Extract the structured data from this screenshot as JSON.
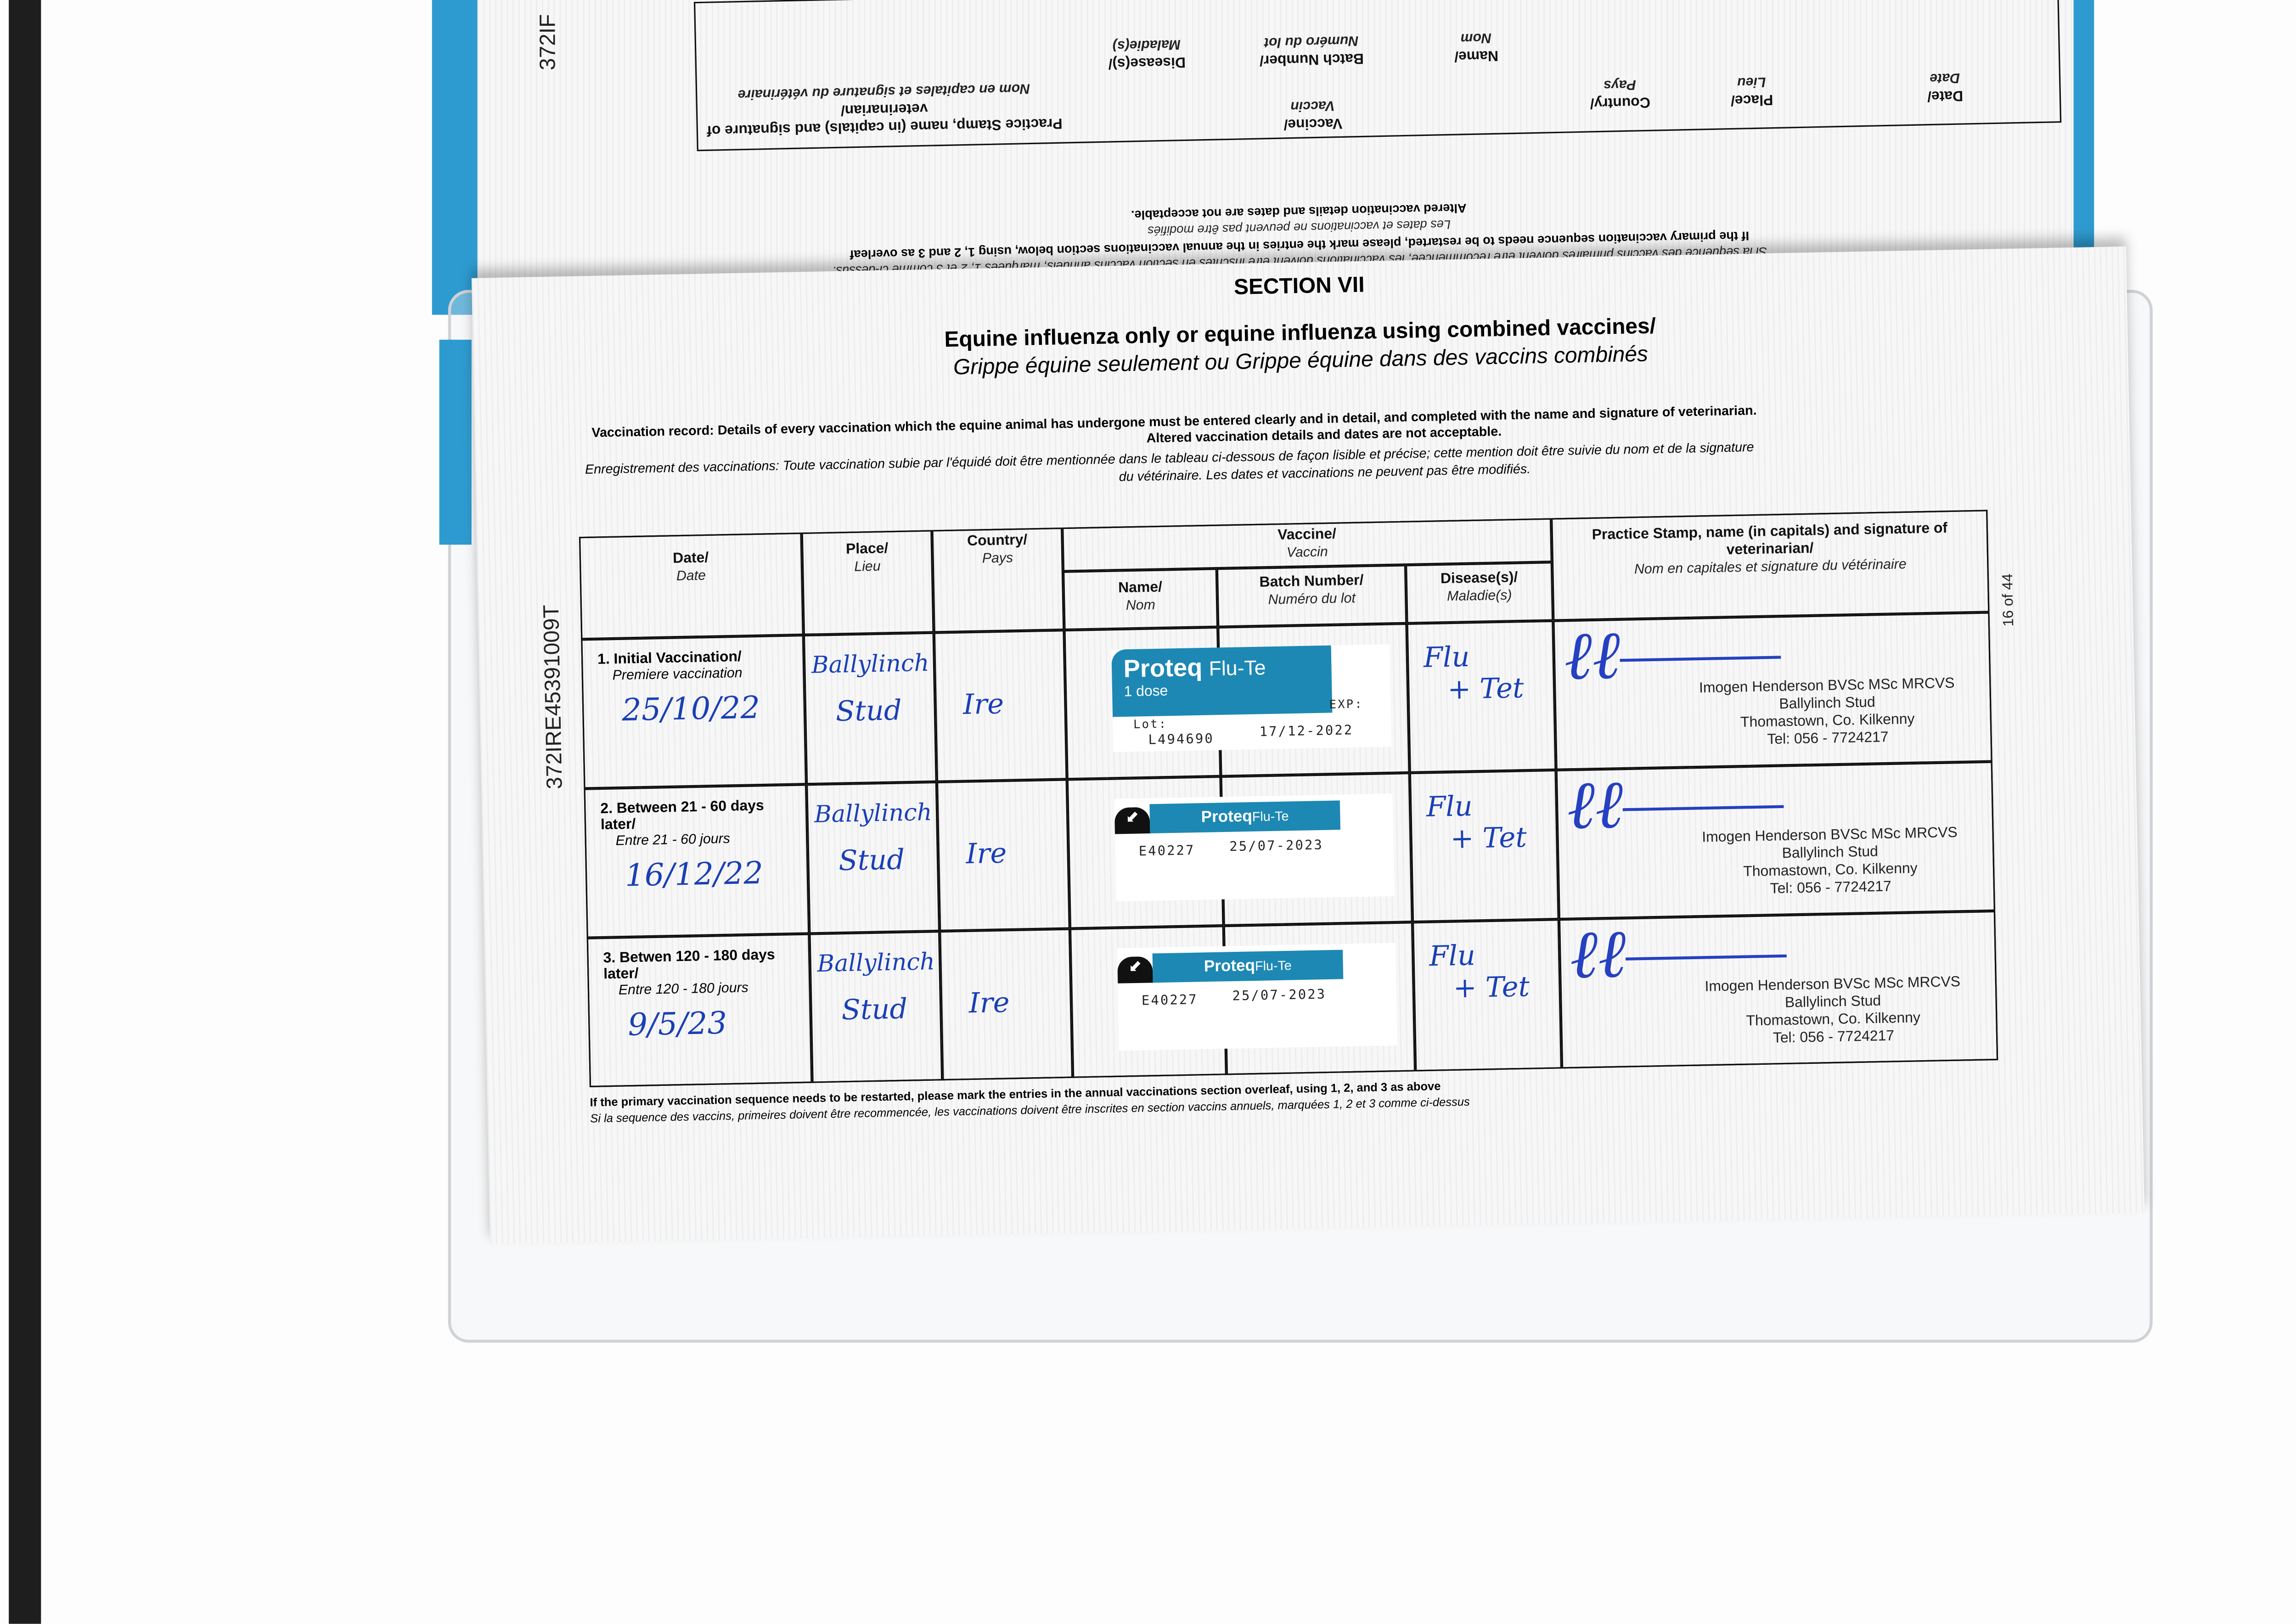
{
  "upper_page": {
    "id_fragment": "372IF",
    "headers": {
      "date": "Date/",
      "date_fr": "Date",
      "place": "Place/",
      "place_fr": "Lieu",
      "country": "Country/",
      "country_fr": "Pays",
      "vaccine": "Vaccine/",
      "vaccine_fr": "Vaccin",
      "name": "Name/",
      "name_fr": "Nom",
      "batch": "Batch Number/",
      "batch_fr": "Numéro du lot",
      "disease": "Disease(s)/",
      "disease_fr": "Maladie(s)",
      "practice": "Practice Stamp, name (in capitals) and signature of veterinarian/",
      "practice_fr": "Nom en capitales et signature du vétérinaire"
    },
    "notes": [
      "Si la sequence des vaccins primaires doivent être recommencée, les vaccinations doivent être inscrites en section vaccins annuels, marquées 1, 2 et 3 comme ci-dessus.",
      "If the primary vaccination sequence needs to be restarted, please mark the entries in the annual vaccinations section below, using 1, 2 and 3 as overleaf",
      "Les dates et vaccinations ne peuvent pas être modifiés",
      "Altered vaccination details and dates are not acceptable."
    ]
  },
  "page": {
    "section": "SECTION VII",
    "title": "Equine influenza only or equine influenza using combined vaccines/",
    "subtitle": "Grippe équine seulement ou Grippe équine dans des vaccins combinés",
    "instruction_en": "Vaccination record: Details of every vaccination which the equine animal has undergone must be entered clearly and in detail, and completed with the name and signature of veterinarian.",
    "instruction_en_2": "Altered vaccination details and dates are not acceptable.",
    "instruction_fr": "Enregistrement des vaccinations: Toute vaccination subie par l'équidé doit être mentionnée dans le tableau ci-dessous de façon lisible et précise; cette mention doit être suivie du nom et de la signature",
    "instruction_fr_2": "du vétérinaire. Les dates et vaccinations ne peuvent pas être modifiés.",
    "side_id": "372IRE45391009T",
    "page_number": "16 of 44",
    "table": {
      "headers": {
        "date": "Date/",
        "date_fr": "Date",
        "place": "Place/",
        "place_fr": "Lieu",
        "country": "Country/",
        "country_fr": "Pays",
        "vaccine": "Vaccine/",
        "vaccine_fr": "Vaccin",
        "name": "Name/",
        "name_fr": "Nom",
        "batch": "Batch Number/",
        "batch_fr": "Numéro du lot",
        "disease": "Disease(s)/",
        "disease_fr": "Maladie(s)",
        "practice": "Practice Stamp, name (in capitals) and signature of veterinarian/",
        "practice_fr": "Nom en capitales et signature du vétérinaire"
      },
      "rows": [
        {
          "label": "1. Initial Vaccination/",
          "label_fr": "Premiere vaccination",
          "date": "25/10/22",
          "place_1": "Ballylinch",
          "place_2": "Stud",
          "country": "Ire",
          "sticker": {
            "brand": "Proteq",
            "product": "Flu-Te",
            "dose": "1 dose",
            "lot_label": "Lot:",
            "exp_label": "EXP:",
            "lot": "L494690",
            "exp": "17/12-2022"
          },
          "disease_1": "Flu",
          "disease_2": "+ Tet",
          "stamp": [
            "Imogen Henderson BVSc MSc MRCVS",
            "Ballylinch Stud",
            "Thomastown, Co. Kilkenny",
            "Tel: 056 - 7724217"
          ]
        },
        {
          "label": "2. Between 21 - 60 days later/",
          "label_fr": "Entre 21 - 60 jours",
          "date": "16/12/22",
          "place_1": "Ballylinch",
          "place_2": "Stud",
          "country": "Ire",
          "sticker": {
            "brand": "Proteq",
            "product": "Flu-Te",
            "lot": "E40227",
            "exp": "25/07-2023"
          },
          "disease_1": "Flu",
          "disease_2": "+ Tet",
          "stamp": [
            "Imogen Henderson BVSc MSc MRCVS",
            "Ballylinch Stud",
            "Thomastown, Co. Kilkenny",
            "Tel: 056 - 7724217"
          ]
        },
        {
          "label": "3. Betwen 120 - 180 days later/",
          "label_fr": "Entre 120 - 180 jours",
          "date": "9/5/23",
          "place_1": "Ballylinch",
          "place_2": "Stud",
          "country": "Ire",
          "sticker": {
            "brand": "Proteq",
            "product": "Flu-Te",
            "lot": "E40227",
            "exp": "25/07-2023"
          },
          "disease_1": "Flu",
          "disease_2": "+ Tet",
          "stamp": [
            "Imogen Henderson BVSc MSc MRCVS",
            "Ballylinch Stud",
            "Thomastown, Co. Kilkenny",
            "Tel: 056 - 7724217"
          ]
        }
      ]
    },
    "footer_en": "If the primary vaccination sequence needs to be restarted, please mark the entries in the annual vaccinations section overleaf, using 1, 2, and 3 as above",
    "footer_fr": "Si la sequence des vaccins, primeires doivent être recommencée, les vaccinations doivent être inscrites en section vaccins annuels, marquées 1, 2 et 3 comme ci-dessus"
  },
  "colors": {
    "ink": "#1a3fb5",
    "sticker": "#1d88b3",
    "passport_blue": "#2e9bd0"
  }
}
